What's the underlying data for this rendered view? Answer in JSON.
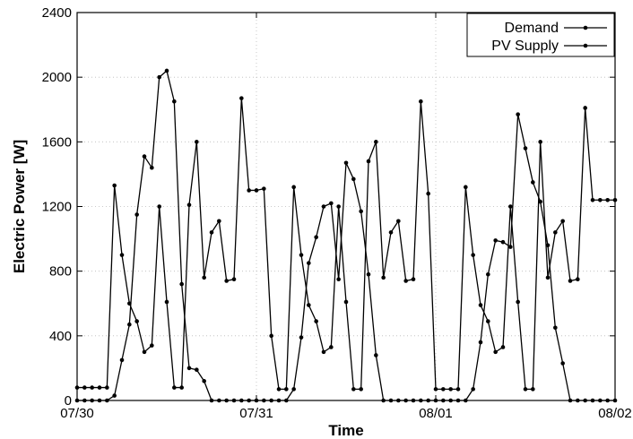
{
  "chart_data": {
    "type": "line",
    "xlabel": "Time",
    "ylabel": "Electric Power [W]",
    "ylim": [
      0,
      2400
    ],
    "xlim": [
      0,
      72
    ],
    "yticks": [
      0,
      400,
      800,
      1200,
      1600,
      2000,
      2400
    ],
    "xticks": [
      {
        "value": 0,
        "label": "07/30"
      },
      {
        "value": 24,
        "label": "07/31"
      },
      {
        "value": 48,
        "label": "08/01"
      },
      {
        "value": 72,
        "label": "08/02"
      }
    ],
    "grid": "dotted",
    "legend_position": "top-right",
    "series": [
      {
        "name": "Demand",
        "x": [
          0,
          1,
          2,
          3,
          4,
          5,
          6,
          7,
          8,
          9,
          10,
          11,
          12,
          13,
          14,
          15,
          16,
          17,
          18,
          19,
          20,
          21,
          22,
          23,
          24,
          25,
          26,
          27,
          28,
          29,
          30,
          31,
          32,
          33,
          34,
          35,
          36,
          37,
          38,
          39,
          40,
          41,
          42,
          43,
          44,
          45,
          46,
          47,
          48,
          49,
          50,
          51,
          52,
          53,
          54,
          55,
          56,
          57,
          58,
          59,
          60,
          61,
          62,
          63,
          64,
          65,
          66,
          67,
          68,
          69,
          70,
          71,
          72
        ],
        "values": [
          80,
          80,
          80,
          80,
          80,
          1330,
          900,
          600,
          490,
          300,
          340,
          1200,
          610,
          80,
          80,
          1210,
          1600,
          760,
          1040,
          1110,
          740,
          750,
          1870,
          1300,
          1300,
          1310,
          400,
          70,
          70,
          1320,
          900,
          590,
          490,
          300,
          330,
          1200,
          610,
          70,
          70,
          1480,
          1600,
          760,
          1040,
          1110,
          740,
          750,
          1850,
          1280,
          70,
          70,
          70,
          70,
          1320,
          900,
          590,
          490,
          300,
          330,
          1200,
          610,
          70,
          70,
          1600,
          760,
          1040,
          1110,
          740,
          750,
          1810,
          1240,
          1240,
          1240,
          1240
        ]
      },
      {
        "name": "PV Supply",
        "x": [
          0,
          1,
          2,
          3,
          4,
          5,
          6,
          7,
          8,
          9,
          10,
          11,
          12,
          13,
          14,
          15,
          16,
          17,
          18,
          19,
          20,
          21,
          22,
          23,
          24,
          25,
          26,
          27,
          28,
          29,
          30,
          31,
          32,
          33,
          34,
          35,
          36,
          37,
          38,
          39,
          40,
          41,
          42,
          43,
          44,
          45,
          46,
          47,
          48,
          49,
          50,
          51,
          52,
          53,
          54,
          55,
          56,
          57,
          58,
          59,
          60,
          61,
          62,
          63,
          64,
          65,
          66,
          67,
          68,
          69,
          70,
          71,
          72
        ],
        "values": [
          0,
          0,
          0,
          0,
          0,
          30,
          250,
          470,
          1150,
          1510,
          1440,
          2000,
          2040,
          1850,
          720,
          200,
          190,
          120,
          0,
          0,
          0,
          0,
          0,
          0,
          0,
          0,
          0,
          0,
          0,
          70,
          390,
          850,
          1010,
          1200,
          1220,
          750,
          1470,
          1370,
          1170,
          780,
          280,
          0,
          0,
          0,
          0,
          0,
          0,
          0,
          0,
          0,
          0,
          0,
          0,
          70,
          360,
          780,
          990,
          980,
          950,
          1770,
          1560,
          1350,
          1230,
          960,
          450,
          230,
          0,
          0,
          0,
          0,
          0,
          0,
          0
        ]
      }
    ]
  }
}
